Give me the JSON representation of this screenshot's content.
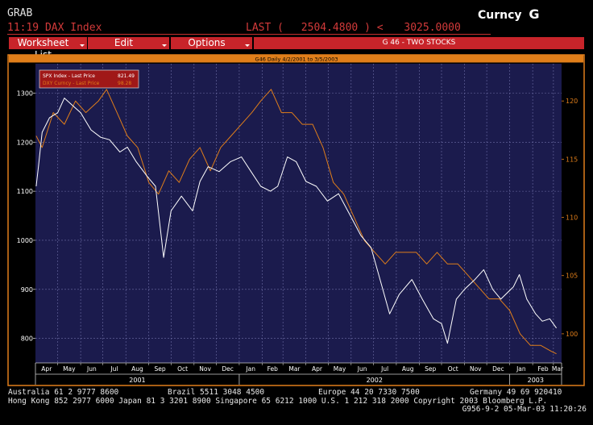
{
  "header": {
    "function": "GRAB",
    "time": "11:19",
    "security": "DAX Index",
    "last_label": "LAST (",
    "last_value": "2504.4800",
    "separator": ") <",
    "other_value": "3025.0000",
    "right_label": "Curncy",
    "right_key": "G"
  },
  "menu": {
    "worksheet_list": "Worksheet List",
    "edit": "Edit",
    "options": "Options",
    "graph_title": "G 46 - TWO STOCKS"
  },
  "chart_subtitle": "G46 Daily 4/2/2001 to 3/5/2003",
  "legend": [
    {
      "name": "SPX Index - Last Price",
      "value": "821.49",
      "color": "#ffffff"
    },
    {
      "name": "DXY Curncy - Last Price",
      "value": "98.28",
      "color": "#e07e1a"
    }
  ],
  "colors": {
    "plot_bg": "#1b1b4d",
    "grid": "#6e6ea6",
    "spx_line": "#ffffff",
    "dxy_line": "#e07e1a",
    "accent_red": "#c8242a",
    "orange": "#e07e1a"
  },
  "chart_data": {
    "type": "line",
    "left_axis": {
      "ticks": [
        800,
        900,
        1000,
        1100,
        1200,
        1300
      ],
      "tick_labels": [
        "800",
        "900",
        "1000",
        "1100",
        "1200",
        "1300"
      ],
      "ylim": [
        750,
        1360
      ]
    },
    "right_axis": {
      "ticks": [
        100,
        105,
        110,
        115,
        120
      ],
      "tick_labels": [
        "100",
        "105",
        "110",
        "115",
        "120"
      ],
      "ylim": [
        97.5,
        123.2
      ]
    },
    "x_months": [
      "Apr",
      "May",
      "Jun",
      "Jul",
      "Aug",
      "Sep",
      "Oct",
      "Nov",
      "Dec",
      "Jan",
      "Feb",
      "Mar",
      "Apr",
      "May",
      "Jun",
      "Jul",
      "Aug",
      "Sep",
      "Oct",
      "Nov",
      "Dec",
      "Jan",
      "Feb",
      "Mar"
    ],
    "x_years": [
      "2001",
      "2002",
      "2003"
    ],
    "grid": true,
    "series": [
      {
        "name": "SPX Index - Last Price",
        "axis": "left",
        "color": "#ffffff",
        "x": [
          "2001-04-02",
          "2001-04-05",
          "2001-04-10",
          "2001-04-20",
          "2001-05-01",
          "2001-05-10",
          "2001-05-21",
          "2001-06-01",
          "2001-06-15",
          "2001-06-28",
          "2001-07-10",
          "2001-07-24",
          "2001-08-03",
          "2001-08-15",
          "2001-08-30",
          "2001-09-10",
          "2001-09-21",
          "2001-10-01",
          "2001-10-15",
          "2001-10-30",
          "2001-11-09",
          "2001-11-20",
          "2001-12-05",
          "2001-12-20",
          "2002-01-04",
          "2002-01-17",
          "2002-01-30",
          "2002-02-12",
          "2002-02-22",
          "2002-03-07",
          "2002-03-19",
          "2002-04-01",
          "2002-04-15",
          "2002-04-30",
          "2002-05-15",
          "2002-05-31",
          "2002-06-14",
          "2002-06-28",
          "2002-07-10",
          "2002-07-23",
          "2002-08-05",
          "2002-08-22",
          "2002-09-05",
          "2002-09-20",
          "2002-10-01",
          "2002-10-09",
          "2002-10-21",
          "2002-11-01",
          "2002-11-15",
          "2002-11-27",
          "2002-12-09",
          "2002-12-20",
          "2003-01-06",
          "2003-01-14",
          "2003-01-24",
          "2003-02-05",
          "2003-02-14",
          "2003-02-24",
          "2003-03-05"
        ],
        "values": [
          1110,
          1150,
          1220,
          1250,
          1260,
          1290,
          1275,
          1260,
          1225,
          1210,
          1205,
          1180,
          1190,
          1160,
          1130,
          1110,
          965,
          1060,
          1090,
          1060,
          1120,
          1150,
          1140,
          1160,
          1170,
          1140,
          1110,
          1100,
          1110,
          1170,
          1160,
          1120,
          1110,
          1080,
          1095,
          1050,
          1010,
          985,
          920,
          850,
          890,
          920,
          880,
          840,
          830,
          790,
          880,
          900,
          920,
          940,
          900,
          880,
          905,
          930,
          880,
          850,
          835,
          840,
          821
        ]
      },
      {
        "name": "DXY Curncy - Last Price",
        "axis": "right",
        "color": "#e07e1a",
        "x": [
          "2001-04-02",
          "2001-04-10",
          "2001-04-25",
          "2001-05-10",
          "2001-05-25",
          "2001-06-08",
          "2001-06-25",
          "2001-07-06",
          "2001-07-20",
          "2001-08-03",
          "2001-08-17",
          "2001-09-01",
          "2001-09-14",
          "2001-09-28",
          "2001-10-12",
          "2001-10-26",
          "2001-11-09",
          "2001-11-23",
          "2001-12-07",
          "2001-12-21",
          "2002-01-04",
          "2002-01-18",
          "2002-01-30",
          "2002-02-13",
          "2002-02-27",
          "2002-03-13",
          "2002-03-27",
          "2002-04-10",
          "2002-04-24",
          "2002-05-08",
          "2002-05-22",
          "2002-06-05",
          "2002-06-19",
          "2002-07-03",
          "2002-07-17",
          "2002-07-31",
          "2002-08-14",
          "2002-08-28",
          "2002-09-11",
          "2002-09-25",
          "2002-10-09",
          "2002-10-23",
          "2002-11-06",
          "2002-11-20",
          "2002-12-04",
          "2002-12-18",
          "2003-01-01",
          "2003-01-15",
          "2003-01-29",
          "2003-02-12",
          "2003-02-26",
          "2003-03-05"
        ],
        "values": [
          117,
          116,
          119,
          118,
          120,
          119,
          120,
          121,
          119,
          117,
          116,
          113,
          112,
          114,
          113,
          115,
          116,
          114,
          116,
          117,
          118,
          119,
          120,
          121,
          119,
          119,
          118,
          118,
          116,
          113,
          112,
          110,
          108,
          107,
          106,
          107,
          107,
          107,
          106,
          107,
          106,
          106,
          105,
          104,
          103,
          103,
          102,
          100,
          99,
          99,
          98.5,
          98.28
        ]
      }
    ]
  },
  "footer": {
    "line1_a": "Australia 61 2 9777 8600",
    "line1_b": "Brazil 5511 3048 4500",
    "line1_c": "Europe 44 20 7330 7500",
    "line1_d": "Germany 49 69 920410",
    "line2": "Hong Kong 852 2977 6000 Japan 81 3 3201 8900 Singapore 65 6212 1000 U.S. 1 212 318 2000 Copyright 2003 Bloomberg L.P.",
    "line3": "G956-9-2 05-Mar-03 11:20:26"
  }
}
